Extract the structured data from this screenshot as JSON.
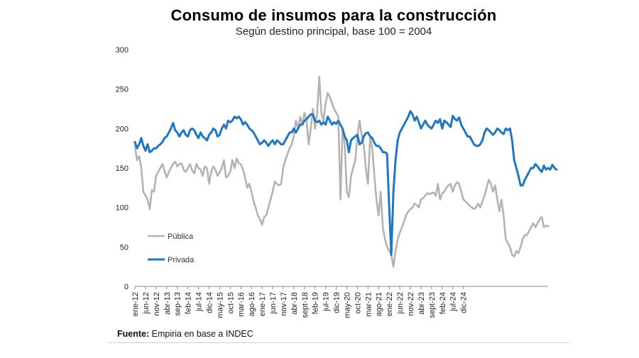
{
  "title": "Consumo de insumos para la construcción",
  "subtitle": "Según destino principal, base 100 = 2004",
  "source_label": "Fuente:",
  "source_text": "Empiria en base a INDEC",
  "chart_data": {
    "type": "line",
    "ylim": [
      0,
      300
    ],
    "yticks": [
      0,
      50,
      100,
      150,
      200,
      250,
      300
    ],
    "x_start": "2012-01",
    "x_end": "2025-03",
    "xtick_labels": [
      "ene-12",
      "jun-12",
      "nov-12",
      "abr-13",
      "sep-13",
      "feb-14",
      "jul-14",
      "dic-14",
      "may-15",
      "oct-15",
      "mar-16",
      "ago-16",
      "ene-17",
      "jun-17",
      "nov-17",
      "abr-18",
      "sept-18",
      "feb-19",
      "jul-19",
      "dic-19",
      "may-20",
      "oct-20",
      "mar-21",
      "ago-21",
      "ene-22",
      "jun-22",
      "nov-22",
      "abr-23",
      "sept-23",
      "feb-24",
      "jul-24",
      "dic-24"
    ],
    "legend_position": "left",
    "series": [
      {
        "name": "Pública",
        "color": "#b3b3b3",
        "values": [
          178,
          160,
          165,
          150,
          120,
          115,
          110,
          98,
          122,
          120,
          140,
          145,
          150,
          155,
          146,
          138,
          145,
          150,
          155,
          158,
          152,
          155,
          156,
          148,
          145,
          150,
          155,
          147,
          143,
          155,
          150,
          148,
          140,
          152,
          150,
          130,
          145,
          152,
          148,
          140,
          145,
          150,
          160,
          138,
          140,
          145,
          160,
          150,
          162,
          156,
          155,
          148,
          138,
          125,
          130,
          120,
          108,
          100,
          90,
          85,
          78,
          88,
          90,
          100,
          110,
          120,
          133,
          130,
          128,
          130,
          150,
          160,
          168,
          175,
          180,
          190,
          210,
          200,
          215,
          205,
          220,
          210,
          180,
          200,
          225,
          200,
          220,
          266,
          220,
          210,
          232,
          245,
          240,
          232,
          225,
          220,
          215,
          110,
          200,
          180,
          120,
          113,
          140,
          150,
          160,
          190,
          210,
          192,
          180,
          150,
          130,
          188,
          175,
          140,
          110,
          90,
          120,
          75,
          60,
          50,
          45,
          40,
          25,
          45,
          60,
          68,
          75,
          82,
          90,
          95,
          98,
          100,
          105,
          103,
          100,
          110,
          112,
          115,
          118,
          117,
          118,
          119,
          115,
          130,
          110,
          118,
          120,
          125,
          128,
          130,
          120,
          128,
          132,
          130,
          120,
          110,
          108,
          105,
          102,
          100,
          98,
          100,
          105,
          100,
          108,
          115,
          125,
          135,
          130,
          120,
          128,
          110,
          95,
          110,
          90,
          60,
          55,
          50,
          40,
          38,
          45,
          42,
          50,
          60,
          65,
          65,
          70,
          75,
          80,
          75,
          80,
          85,
          88,
          75,
          77,
          76
        ]
      },
      {
        "name": "Privada",
        "color": "#1f77c4",
        "values": [
          183,
          175,
          180,
          188,
          178,
          172,
          180,
          170,
          172,
          175,
          175,
          178,
          180,
          183,
          188,
          190,
          195,
          200,
          207,
          198,
          195,
          190,
          195,
          198,
          192,
          190,
          198,
          200,
          198,
          192,
          188,
          195,
          190,
          188,
          185,
          192,
          195,
          200,
          198,
          190,
          192,
          200,
          205,
          200,
          210,
          208,
          210,
          215,
          213,
          215,
          212,
          205,
          208,
          205,
          200,
          198,
          195,
          190,
          185,
          180,
          182,
          185,
          182,
          178,
          182,
          185,
          180,
          185,
          183,
          180,
          180,
          185,
          190,
          195,
          195,
          200,
          195,
          200,
          205,
          205,
          210,
          212,
          215,
          218,
          218,
          210,
          208,
          210,
          205,
          208,
          205,
          215,
          210,
          205,
          208,
          206,
          210,
          205,
          200,
          190,
          185,
          170,
          185,
          188,
          190,
          192,
          180,
          182,
          190,
          194,
          195,
          190,
          188,
          182,
          178,
          178,
          175,
          170,
          170,
          168,
          100,
          40,
          120,
          160,
          185,
          195,
          200,
          205,
          210,
          215,
          222,
          218,
          210,
          215,
          208,
          200,
          205,
          210,
          205,
          202,
          200,
          205,
          210,
          207,
          212,
          200,
          210,
          208,
          205,
          202,
          216,
          212,
          210,
          214,
          205,
          200,
          195,
          190,
          190,
          185,
          180,
          178,
          178,
          180,
          185,
          195,
          200,
          198,
          195,
          192,
          195,
          200,
          198,
          195,
          193,
          200,
          198,
          200,
          185,
          160,
          150,
          140,
          128,
          128,
          135,
          140,
          145,
          150,
          150,
          155,
          152,
          148,
          145,
          153,
          148,
          150,
          148,
          154,
          150,
          148
        ]
      }
    ]
  }
}
